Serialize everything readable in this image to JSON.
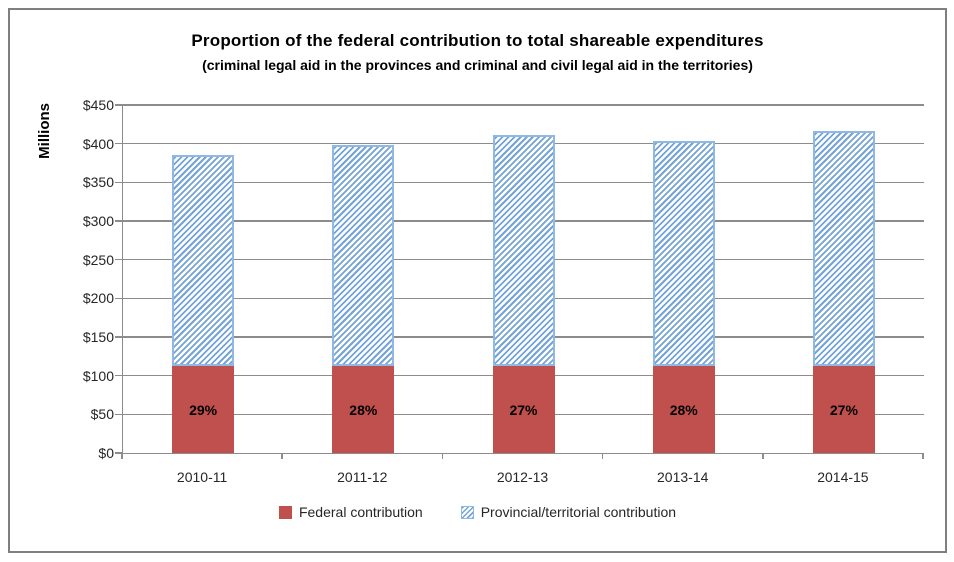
{
  "title": "Proportion of the federal contribution to total shareable expenditures",
  "subtitle": "(criminal legal aid in the provinces and criminal and civil legal aid in the territories)",
  "y_axis_title": "Millions",
  "legend": {
    "items": [
      {
        "label": "Federal contribution",
        "swatch": "solid-red"
      },
      {
        "label": "Provincial/territorial contribution",
        "swatch": "hatched-blue"
      }
    ],
    "position": "bottom"
  },
  "colors": {
    "federal": "#C0504D",
    "provincial_hatch_stripe": "#74A3D6",
    "provincial_border": "#8FB9E4",
    "gridline": "#8C8C8C",
    "axis": "#8C8C8C",
    "frame_border": "#7F7F7F",
    "text": "#262626"
  },
  "chart_data": {
    "type": "bar",
    "stacked": true,
    "title": "Proportion of the federal contribution to total shareable expenditures",
    "subtitle": "(criminal legal aid in the provinces and criminal and civil legal aid in the territories)",
    "xlabel": "",
    "ylabel": "Millions",
    "categories": [
      "2010-11",
      "2011-12",
      "2012-13",
      "2013-14",
      "2014-15"
    ],
    "series": [
      {
        "name": "Federal contribution",
        "values": [
          112,
          112,
          112,
          112,
          112
        ],
        "color": "#C0504D",
        "pattern": "solid"
      },
      {
        "name": "Provincial/territorial contribution",
        "values": [
          273,
          286,
          299,
          292,
          304
        ],
        "color": "#74A3D6",
        "pattern": "diagonal-hatch"
      }
    ],
    "totals": [
      385,
      398,
      411,
      404,
      416
    ],
    "bar_labels": [
      "29%",
      "28%",
      "27%",
      "28%",
      "27%"
    ],
    "ylim": [
      0,
      450
    ],
    "ytick_step": 50,
    "ytick_labels": [
      "$0",
      "$50",
      "$100",
      "$150",
      "$200",
      "$250",
      "$300",
      "$350",
      "$400",
      "$450"
    ],
    "grid": true,
    "legend_position": "bottom"
  }
}
